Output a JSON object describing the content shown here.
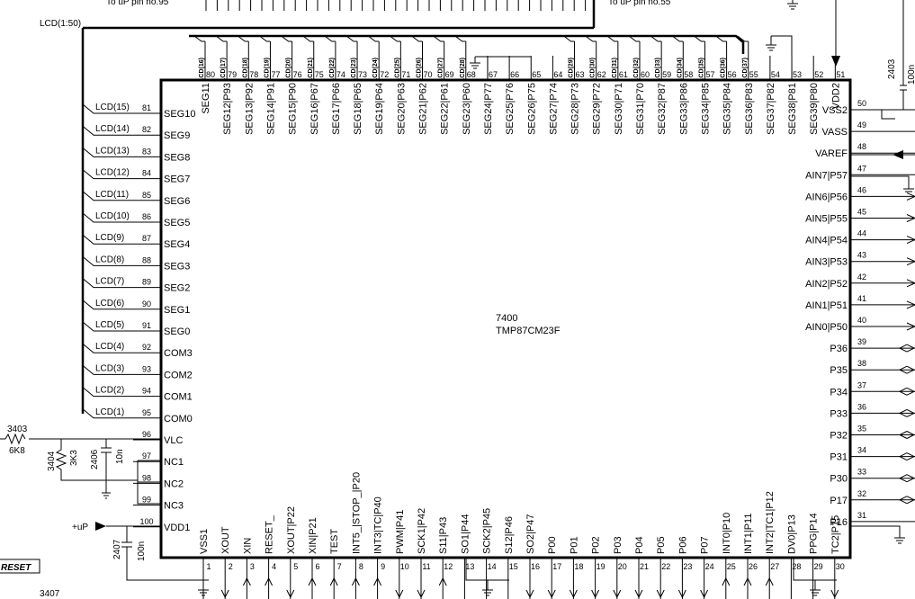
{
  "chip": {
    "ref": "7400",
    "part": "TMP87CM23F"
  },
  "top_notes": {
    "left": "To uP pin no.95",
    "right": "To uP pin no.55"
  },
  "bus_label": "LCD(1:50)",
  "left_pins": [
    {
      "num": "81",
      "name": "SEG10",
      "net": "LCD(15)"
    },
    {
      "num": "82",
      "name": "SEG9",
      "net": "LCD(14)"
    },
    {
      "num": "83",
      "name": "SEG8",
      "net": "LCD(13)"
    },
    {
      "num": "84",
      "name": "SEG7",
      "net": "LCD(12)"
    },
    {
      "num": "85",
      "name": "SEG6",
      "net": "LCD(11)"
    },
    {
      "num": "86",
      "name": "SEG5",
      "net": "LCD(10)"
    },
    {
      "num": "87",
      "name": "SEG4",
      "net": "LCD(9)"
    },
    {
      "num": "88",
      "name": "SEG3",
      "net": "LCD(8)"
    },
    {
      "num": "89",
      "name": "SEG2",
      "net": "LCD(7)"
    },
    {
      "num": "90",
      "name": "SEG1",
      "net": "LCD(6)"
    },
    {
      "num": "91",
      "name": "SEG0",
      "net": "LCD(5)"
    },
    {
      "num": "92",
      "name": "COM3",
      "net": "LCD(4)"
    },
    {
      "num": "93",
      "name": "COM2",
      "net": "LCD(3)"
    },
    {
      "num": "94",
      "name": "COM1",
      "net": "LCD(2)"
    },
    {
      "num": "95",
      "name": "COM0",
      "net": "LCD(1)"
    },
    {
      "num": "96",
      "name": "VLC",
      "net": ""
    },
    {
      "num": "97",
      "name": "NC1",
      "net": ""
    },
    {
      "num": "98",
      "name": "NC2",
      "net": ""
    },
    {
      "num": "99",
      "name": "NC3",
      "net": ""
    },
    {
      "num": "100",
      "name": "VDD1",
      "net": "+uP"
    }
  ],
  "top_pins": [
    {
      "num": "80",
      "name": "SEG11",
      "net": "LCD(16)"
    },
    {
      "num": "79",
      "name": "SEG12|P93",
      "net": "LCD(17)"
    },
    {
      "num": "78",
      "name": "SEG13|P92",
      "net": "LCD(18)"
    },
    {
      "num": "77",
      "name": "SEG14|P91",
      "net": "LCD(19)"
    },
    {
      "num": "76",
      "name": "SEG15|P90",
      "net": "LCD(20)"
    },
    {
      "num": "75",
      "name": "SEG16|P67",
      "net": "LCD(21)"
    },
    {
      "num": "74",
      "name": "SEG17|P66",
      "net": "LCD(22)"
    },
    {
      "num": "73",
      "name": "SEG18|P65",
      "net": "LCD(23)"
    },
    {
      "num": "72",
      "name": "SEG19|P64",
      "net": "LCD(24)"
    },
    {
      "num": "71",
      "name": "SEG20|P63",
      "net": "LCD(25)"
    },
    {
      "num": "70",
      "name": "SEG21|P62",
      "net": "LCD(26)"
    },
    {
      "num": "69",
      "name": "SEG22|P61",
      "net": "LCD(27)"
    },
    {
      "num": "68",
      "name": "SEG23|P60",
      "net": "LCD(28)"
    },
    {
      "num": "67",
      "name": "SEG24|P77",
      "net": ""
    },
    {
      "num": "66",
      "name": "SEG25|P76",
      "net": ""
    },
    {
      "num": "65",
      "name": "SEG26|P75",
      "net": ""
    },
    {
      "num": "64",
      "name": "SEG27|P74",
      "net": ""
    },
    {
      "num": "63",
      "name": "SEG28|P73",
      "net": "LCD(29)"
    },
    {
      "num": "62",
      "name": "SEG29|P72",
      "net": "LCD(30)"
    },
    {
      "num": "61",
      "name": "SEG30|P71",
      "net": "LCD(31)"
    },
    {
      "num": "60",
      "name": "SEG31|P70",
      "net": "LCD(32)"
    },
    {
      "num": "59",
      "name": "SEG32|P87",
      "net": "LCD(33)"
    },
    {
      "num": "58",
      "name": "SEG33|P86",
      "net": "LCD(34)"
    },
    {
      "num": "57",
      "name": "SEG34|P85",
      "net": "LCD(35)"
    },
    {
      "num": "56",
      "name": "SEG35|P84",
      "net": "LCD(36)"
    },
    {
      "num": "55",
      "name": "SEG36|P83",
      "net": "LCD(37)"
    },
    {
      "num": "54",
      "name": "SEG37|P82",
      "net": ""
    },
    {
      "num": "53",
      "name": "SEG38|P81",
      "net": ""
    },
    {
      "num": "52",
      "name": "SEG39|P80",
      "net": ""
    },
    {
      "num": "51",
      "name": "VDD2",
      "net": ""
    }
  ],
  "right_pins": [
    {
      "num": "50",
      "name": "VSS2"
    },
    {
      "num": "49",
      "name": "VASS"
    },
    {
      "num": "48",
      "name": "VAREF"
    },
    {
      "num": "47",
      "name": "AIN7|P57"
    },
    {
      "num": "46",
      "name": "AIN6|P56"
    },
    {
      "num": "45",
      "name": "AIN5|P55"
    },
    {
      "num": "44",
      "name": "AIN4|P54"
    },
    {
      "num": "43",
      "name": "AIN3|P53"
    },
    {
      "num": "42",
      "name": "AIN2|P52"
    },
    {
      "num": "41",
      "name": "AIN1|P51"
    },
    {
      "num": "40",
      "name": "AIN0|P50"
    },
    {
      "num": "39",
      "name": "P36"
    },
    {
      "num": "38",
      "name": "P35"
    },
    {
      "num": "37",
      "name": "P34"
    },
    {
      "num": "36",
      "name": "P33"
    },
    {
      "num": "35",
      "name": "P32"
    },
    {
      "num": "34",
      "name": "P31"
    },
    {
      "num": "33",
      "name": "P30"
    },
    {
      "num": "32",
      "name": "P17"
    },
    {
      "num": "31",
      "name": "P16"
    }
  ],
  "bottom_pins": [
    {
      "num": "1",
      "name": "VSS1"
    },
    {
      "num": "2",
      "name": "XOUT"
    },
    {
      "num": "3",
      "name": "XIN"
    },
    {
      "num": "4",
      "name": "RESET_"
    },
    {
      "num": "5",
      "name": "XOUT|P22"
    },
    {
      "num": "6",
      "name": "XIN|P21"
    },
    {
      "num": "7",
      "name": "TEST"
    },
    {
      "num": "8",
      "name": "INT5_|STOP_|P20"
    },
    {
      "num": "9",
      "name": "INT3|TC|P40"
    },
    {
      "num": "10",
      "name": "PWM|P41"
    },
    {
      "num": "11",
      "name": "SCK1|P42"
    },
    {
      "num": "12",
      "name": "S11|P43"
    },
    {
      "num": "13",
      "name": "SO1|P44"
    },
    {
      "num": "14",
      "name": "SCK2|P45"
    },
    {
      "num": "15",
      "name": "S12|P46"
    },
    {
      "num": "16",
      "name": "SO2|P47"
    },
    {
      "num": "17",
      "name": "P00"
    },
    {
      "num": "18",
      "name": "P01"
    },
    {
      "num": "19",
      "name": "P02"
    },
    {
      "num": "20",
      "name": "P03"
    },
    {
      "num": "21",
      "name": "P04"
    },
    {
      "num": "22",
      "name": "P05"
    },
    {
      "num": "23",
      "name": "P06"
    },
    {
      "num": "24",
      "name": "P07"
    },
    {
      "num": "25",
      "name": "INT0|P10"
    },
    {
      "num": "26",
      "name": "INT1|P11"
    },
    {
      "num": "27",
      "name": "INT2|TC1|P12"
    },
    {
      "num": "28",
      "name": "DV0|P13"
    },
    {
      "num": "29",
      "name": "PPG|P14"
    },
    {
      "num": "30",
      "name": "TC2|P15"
    }
  ],
  "components": {
    "r3403": {
      "ref": "3403",
      "value": "6K8"
    },
    "r3404": {
      "ref": "3404",
      "value": "3K3"
    },
    "c2406": {
      "ref": "2406",
      "value": "10n"
    },
    "c2407": {
      "ref": "2407",
      "value": "100n"
    },
    "c2403": {
      "ref": "2403",
      "value": "100n"
    },
    "r3407": {
      "ref": "3407"
    }
  },
  "supply_label": "+uP",
  "reset_label": "RESET"
}
